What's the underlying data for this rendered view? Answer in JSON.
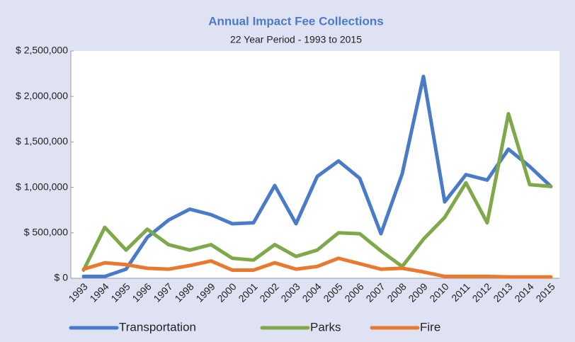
{
  "chart_data": {
    "type": "line",
    "title": "Annual Impact Fee Collections",
    "subtitle": "22 Year Period - 1993 to 2015",
    "categories": [
      "1993",
      "1994",
      "1995",
      "1996",
      "1997",
      "1998",
      "1999",
      "2000",
      "2001",
      "2002",
      "2003",
      "2004",
      "2005",
      "2006",
      "2007",
      "2008",
      "2009",
      "2010",
      "2011",
      "2012",
      "2013",
      "2014",
      "2015"
    ],
    "series": [
      {
        "name": "Transportation",
        "color": "#4a7bc8",
        "values": [
          20000,
          20000,
          100000,
          450000,
          640000,
          760000,
          700000,
          600000,
          610000,
          1020000,
          600000,
          1120000,
          1290000,
          1100000,
          490000,
          1150000,
          2220000,
          840000,
          1140000,
          1080000,
          1420000,
          1230000,
          1010000
        ]
      },
      {
        "name": "Parks",
        "color": "#7ea84a",
        "values": [
          90000,
          560000,
          310000,
          540000,
          370000,
          310000,
          370000,
          220000,
          200000,
          370000,
          240000,
          310000,
          500000,
          490000,
          300000,
          130000,
          430000,
          670000,
          1050000,
          610000,
          1810000,
          1030000,
          1010000
        ]
      },
      {
        "name": "Fire",
        "color": "#e8792e",
        "values": [
          100000,
          170000,
          150000,
          110000,
          100000,
          140000,
          190000,
          90000,
          90000,
          170000,
          100000,
          130000,
          220000,
          160000,
          100000,
          110000,
          70000,
          20000,
          20000,
          20000,
          15000,
          15000,
          15000
        ]
      }
    ],
    "ylim": [
      0,
      2500000
    ],
    "yticks": [
      {
        "value": 0,
        "label": "$ 0"
      },
      {
        "value": 500000,
        "label": "$ 500,000"
      },
      {
        "value": 1000000,
        "label": "$ 1,000,000"
      },
      {
        "value": 1500000,
        "label": "$ 1,500,000"
      },
      {
        "value": 2000000,
        "label": "$ 2,000,000"
      },
      {
        "value": 2500000,
        "label": "$ 2,500,000"
      }
    ],
    "grid": false,
    "legend": "bottom"
  }
}
